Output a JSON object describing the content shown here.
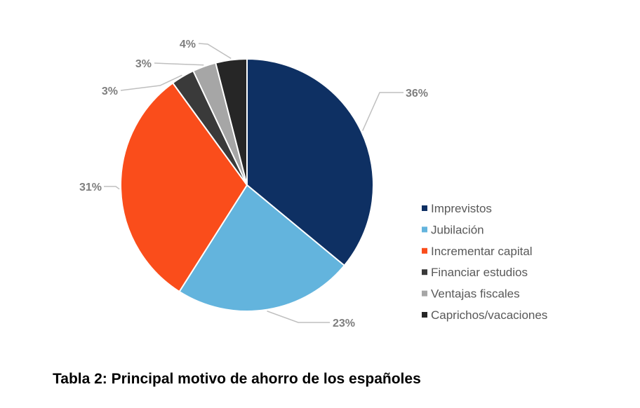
{
  "caption": "Tabla 2: Principal motivo de ahorro de los españoles",
  "chart_data": {
    "type": "pie",
    "title": "",
    "legend_position": "right",
    "start_angle_deg": 0,
    "direction": "clockwise",
    "slices": [
      {
        "label": "Imprevistos",
        "value": 36,
        "display": "36%",
        "color": "#0e3063"
      },
      {
        "label": "Jubilación",
        "value": 23,
        "display": "23%",
        "color": "#63b4dd"
      },
      {
        "label": "Incrementar capital",
        "value": 31,
        "display": "31%",
        "color": "#fa4d1b"
      },
      {
        "label": "Financiar estudios",
        "value": 3,
        "display": "3%",
        "color": "#3a3a3a"
      },
      {
        "label": "Ventajas fiscales",
        "value": 3,
        "display": "3%",
        "color": "#a6a6a6"
      },
      {
        "label": "Caprichos/vacaciones",
        "value": 4,
        "display": "4%",
        "color": "#262626"
      }
    ]
  }
}
